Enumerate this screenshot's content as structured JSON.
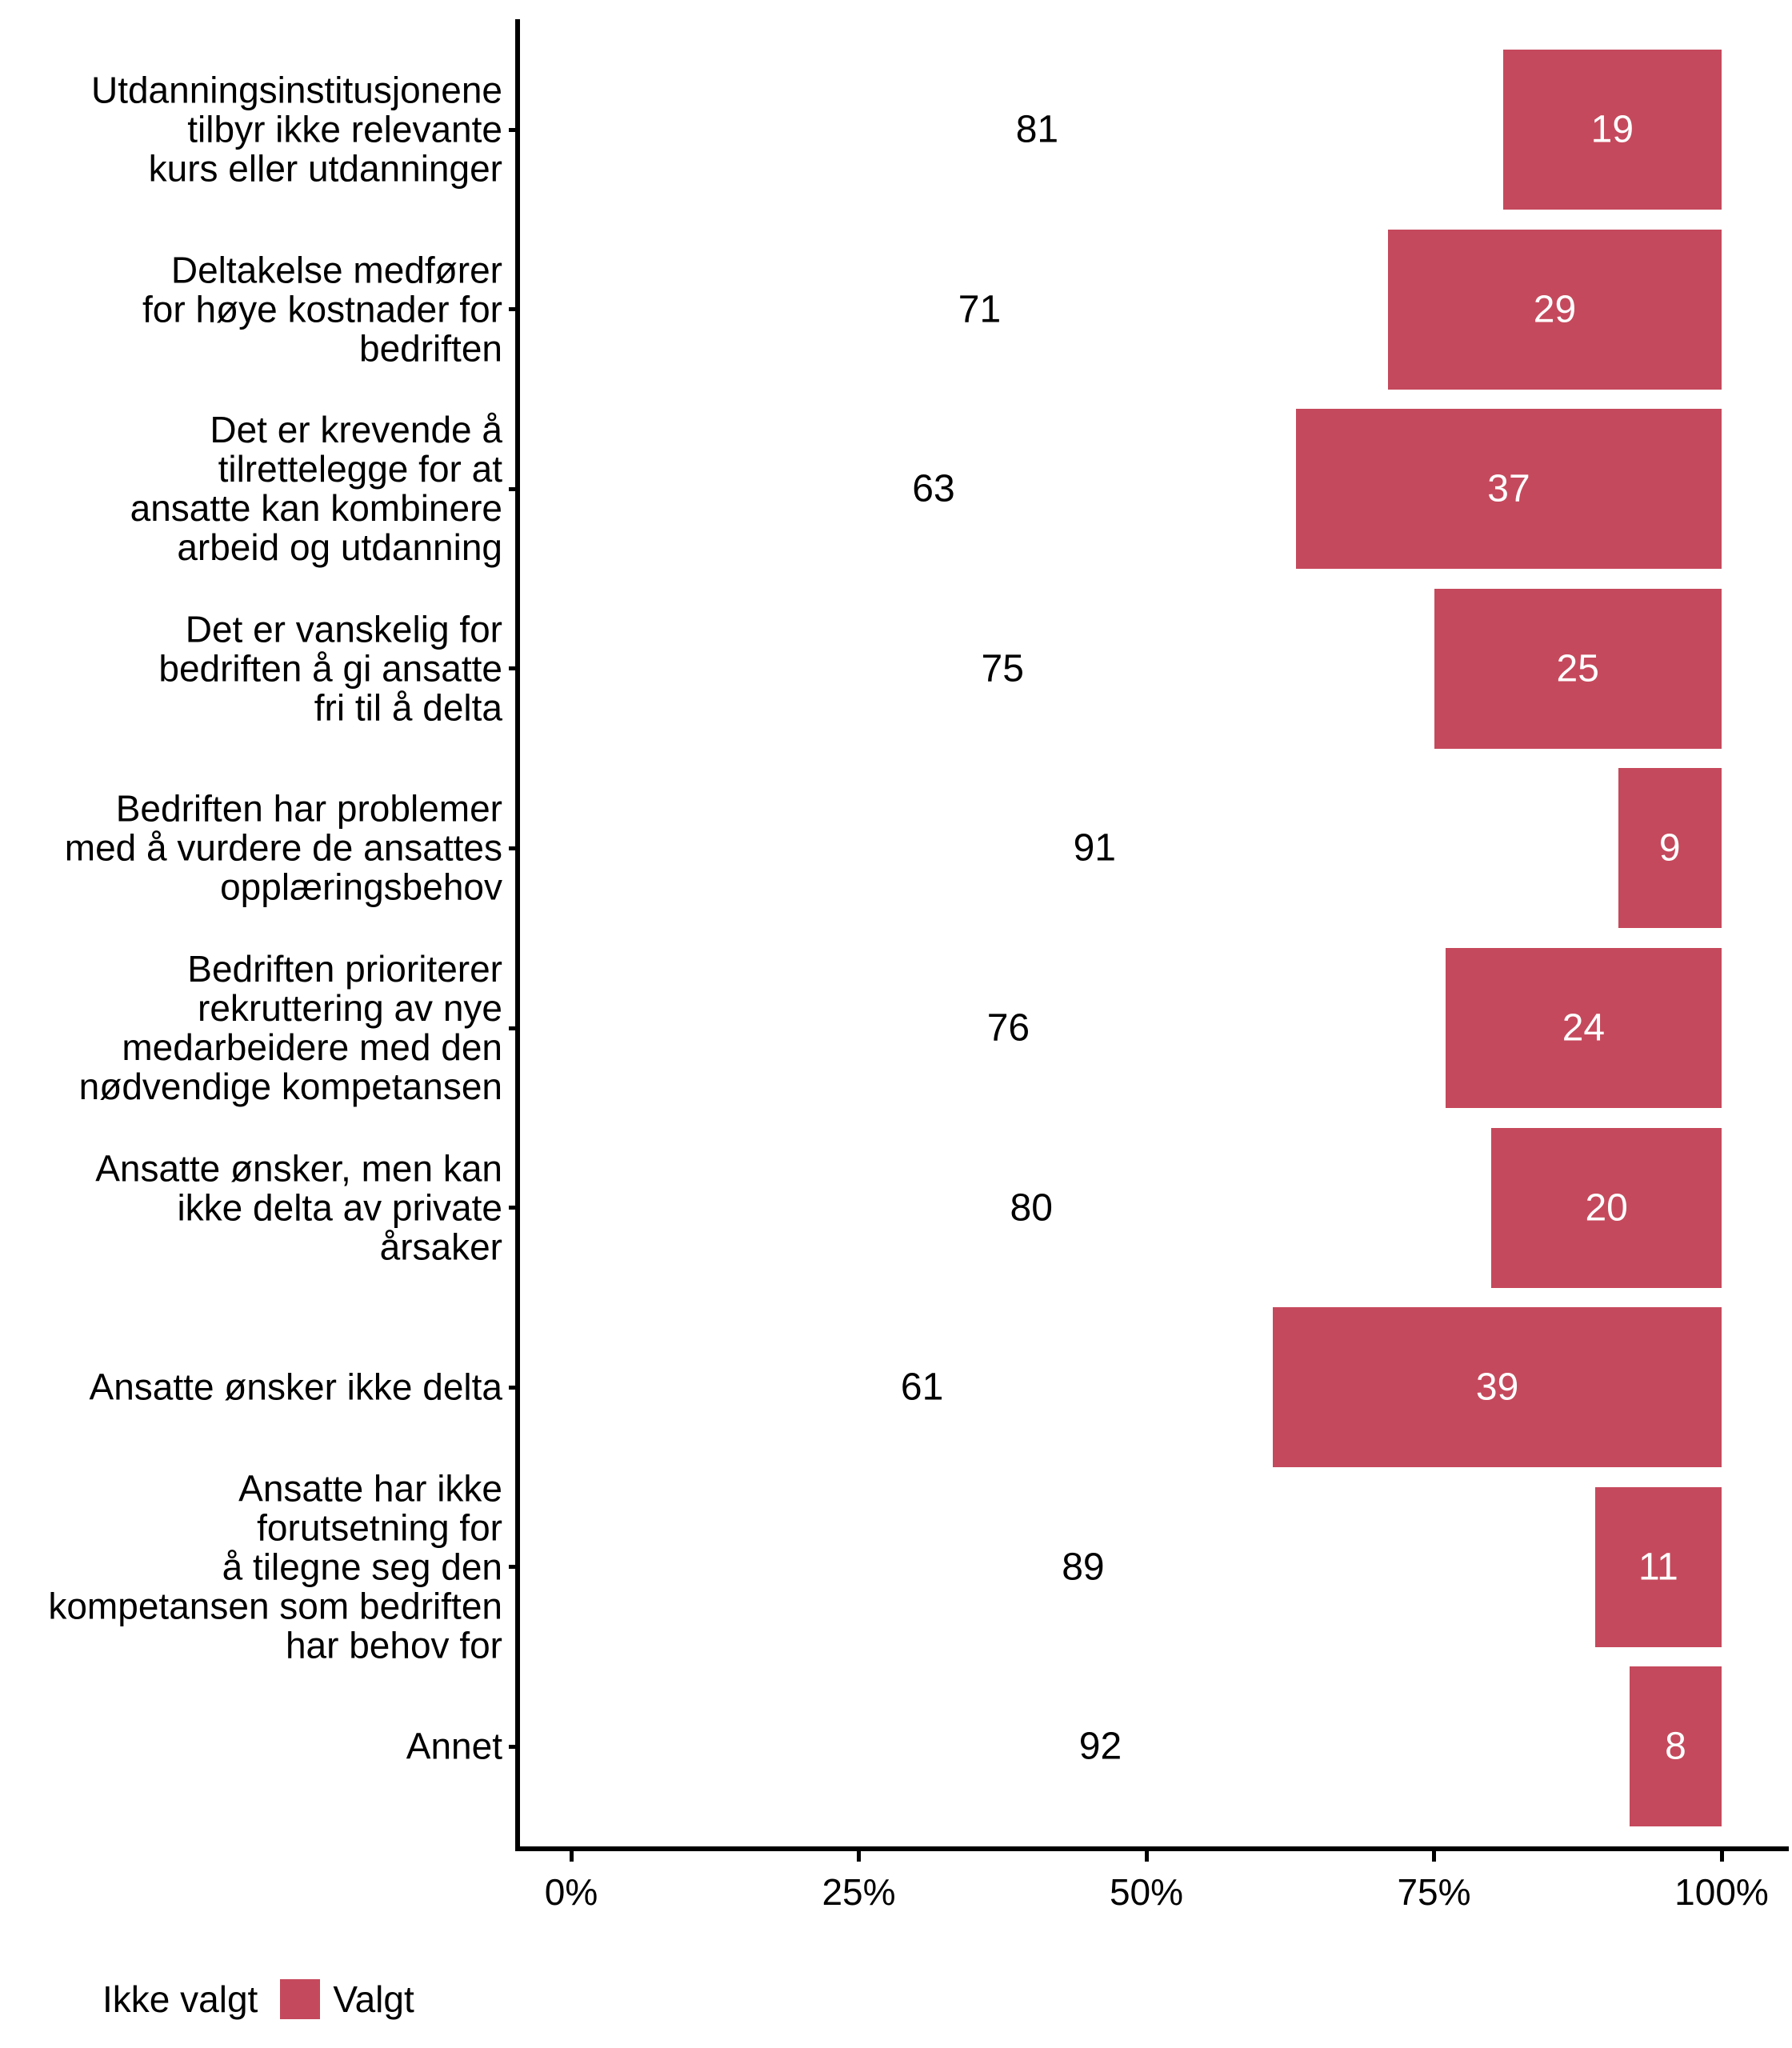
{
  "chart_data": {
    "type": "bar",
    "orientation": "horizontal",
    "stacking": "percent",
    "grid": false,
    "legend_position": "bottom-left",
    "categories": [
      {
        "lines": [
          "Utdanningsinstitusjonene",
          "tilbyr ikke relevante",
          "kurs eller utdanninger"
        ]
      },
      {
        "lines": [
          "Deltakelse medfører",
          "for høye kostnader for",
          "bedriften"
        ]
      },
      {
        "lines": [
          "Det er krevende å",
          "tilrettelegge for at",
          "ansatte kan kombinere",
          "arbeid og utdanning"
        ]
      },
      {
        "lines": [
          "Det er vanskelig for",
          "bedriften å gi ansatte",
          "fri til å delta"
        ]
      },
      {
        "lines": [
          "Bedriften har problemer",
          "med å vurdere de ansattes",
          "opplæringsbehov"
        ]
      },
      {
        "lines": [
          "Bedriften prioriterer",
          "rekruttering av nye",
          "medarbeidere med den",
          "nødvendige kompetansen"
        ]
      },
      {
        "lines": [
          "Ansatte ønsker, men kan",
          "ikke delta av private",
          "årsaker"
        ]
      },
      {
        "lines": [
          "Ansatte ønsker ikke delta"
        ]
      },
      {
        "lines": [
          "Ansatte har ikke",
          "forutsetning for",
          "å tilegne seg den",
          "kompetansen som bedriften",
          "har behov for"
        ]
      },
      {
        "lines": [
          "Annet"
        ]
      }
    ],
    "series": [
      {
        "name": "Ikke valgt",
        "color": "#ffffff",
        "values": [
          81,
          71,
          63,
          75,
          91,
          76,
          80,
          61,
          89,
          92
        ]
      },
      {
        "name": "Valgt",
        "color": "#c5495c",
        "values": [
          19,
          29,
          37,
          25,
          9,
          24,
          20,
          39,
          11,
          8
        ]
      }
    ],
    "x_axis": {
      "range": [
        0,
        100
      ],
      "ticks": [
        {
          "value": 0,
          "label": "0%"
        },
        {
          "value": 25,
          "label": "25%"
        },
        {
          "value": 50,
          "label": "50%"
        },
        {
          "value": 75,
          "label": "75%"
        },
        {
          "value": 100,
          "label": "100%"
        }
      ]
    },
    "legend": {
      "items": [
        {
          "label": "Ikke valgt",
          "color": "#ffffff"
        },
        {
          "label": "Valgt",
          "color": "#c5495c"
        }
      ]
    },
    "value_label_colors": {
      "not_selected": "#000000",
      "selected": "#ffffff"
    }
  }
}
